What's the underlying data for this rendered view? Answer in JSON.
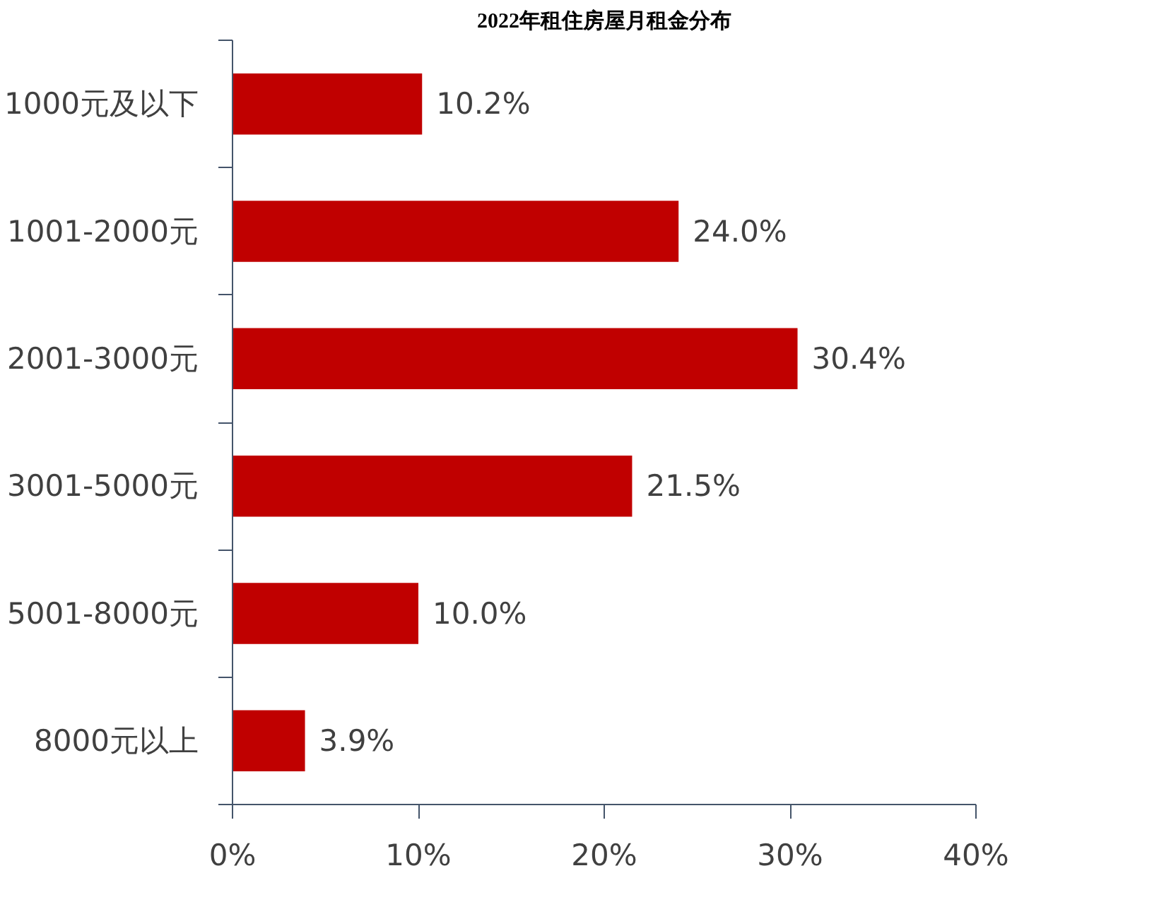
{
  "chart_data": {
    "type": "bar",
    "orientation": "horizontal",
    "title": "2022年租住房屋月租金分布",
    "categories": [
      "1000元及以下",
      "1001-2000元",
      "2001-3000元",
      "3001-5000元",
      "5001-8000元",
      "8000元以上"
    ],
    "values": [
      10.2,
      24.0,
      30.4,
      21.5,
      10.0,
      3.9
    ],
    "value_labels": [
      "10.2%",
      "24.0%",
      "30.4%",
      "21.5%",
      "10.0%",
      "3.9%"
    ],
    "color": "#c00000",
    "xlim": [
      0,
      40
    ],
    "xticks": [
      {
        "value": 0,
        "label": "0%"
      },
      {
        "value": 10,
        "label": "10%"
      },
      {
        "value": 20,
        "label": "20%"
      },
      {
        "value": 30,
        "label": "30%"
      },
      {
        "value": 40,
        "label": "40%"
      }
    ],
    "grid": false
  }
}
